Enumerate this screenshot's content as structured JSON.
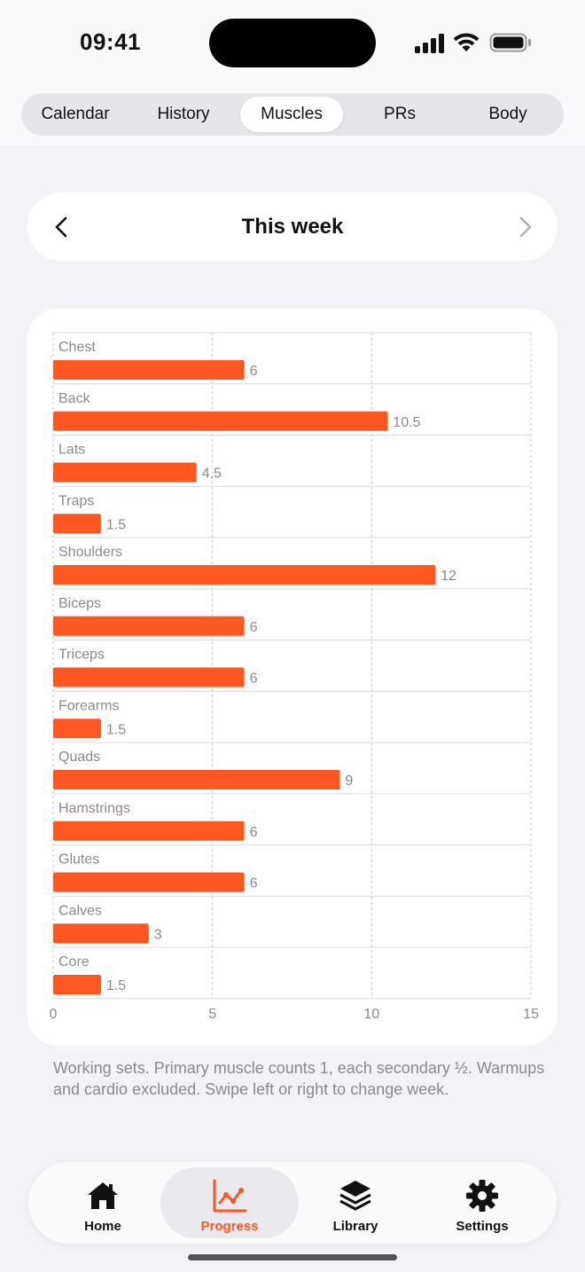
{
  "status": {
    "time": "09:41"
  },
  "segments": [
    {
      "label": "Calendar"
    },
    {
      "label": "History"
    },
    {
      "label": "Muscles"
    },
    {
      "label": "PRs"
    },
    {
      "label": "Body"
    }
  ],
  "active_segment": "Muscles",
  "week": {
    "title": "This week"
  },
  "colors": {
    "accent": "#ff5722",
    "background": "#f2f2f7",
    "card": "#ffffff",
    "muted_text": "#8a8a8e"
  },
  "chart_data": {
    "type": "bar",
    "orientation": "horizontal",
    "categories": [
      "Chest",
      "Back",
      "Lats",
      "Traps",
      "Shoulders",
      "Biceps",
      "Triceps",
      "Forearms",
      "Quads",
      "Hamstrings",
      "Glutes",
      "Calves",
      "Core"
    ],
    "values": [
      6,
      10.5,
      4.5,
      1.5,
      12,
      6,
      6,
      1.5,
      9,
      6,
      6,
      3,
      1.5
    ],
    "value_labels": [
      "6",
      "10.5",
      "4.5",
      "1.5",
      "12",
      "6",
      "6",
      "1.5",
      "9",
      "6",
      "6",
      "3",
      "1.5"
    ],
    "xlim": [
      0,
      15
    ],
    "xticks": [
      "0",
      "5",
      "10",
      "15"
    ],
    "grid": true,
    "bar_color": "#ff5722"
  },
  "footnote": "Working sets. Primary muscle counts 1, each secondary ½. Warmups and cardio excluded. Swipe left or right to change week.",
  "tabs": [
    {
      "label": "Home",
      "icon": "house-icon"
    },
    {
      "label": "Progress",
      "icon": "chart-line-icon"
    },
    {
      "label": "Library",
      "icon": "layers-stack-icon"
    },
    {
      "label": "Settings",
      "icon": "gear-icon"
    }
  ],
  "active_tab": "Progress"
}
